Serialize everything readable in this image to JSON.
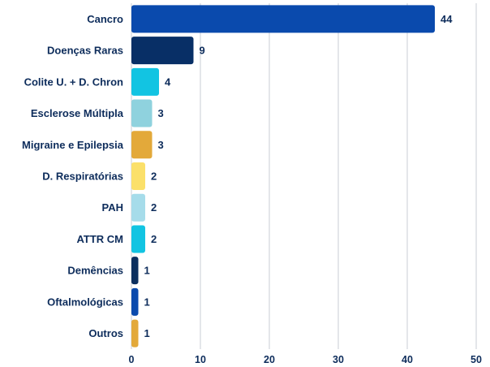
{
  "chart_data": {
    "type": "bar",
    "orientation": "horizontal",
    "categories": [
      "Cancro",
      "Doenças Raras",
      "Colite U. + D. Chron",
      "Esclerose Múltipla",
      "Migraine e Epilepsia",
      "D. Respiratórias",
      "PAH",
      "ATTR CM",
      "Demências",
      "Oftalmológicas",
      "Outros"
    ],
    "values": [
      44,
      9,
      4,
      3,
      3,
      2,
      2,
      2,
      1,
      1,
      1
    ],
    "value_labels": [
      "44",
      "9",
      "4",
      "3",
      "3",
      "2",
      "2",
      "2",
      "1",
      "1",
      "1"
    ],
    "colors": [
      "#0a4aad",
      "#082f66",
      "#12c4e2",
      "#8fd2de",
      "#e3a93a",
      "#fbe06a",
      "#a6dcea",
      "#12c4e2",
      "#0b2f5f",
      "#0a4aad",
      "#e3a93a"
    ],
    "xlim": [
      0,
      50
    ],
    "xticks": [
      0,
      10,
      20,
      30,
      40,
      50
    ],
    "xtick_labels": [
      "0",
      "10",
      "20",
      "30",
      "40",
      "50"
    ],
    "title": "",
    "xlabel": "",
    "ylabel": "",
    "grid": "vertical",
    "legend": "none"
  }
}
